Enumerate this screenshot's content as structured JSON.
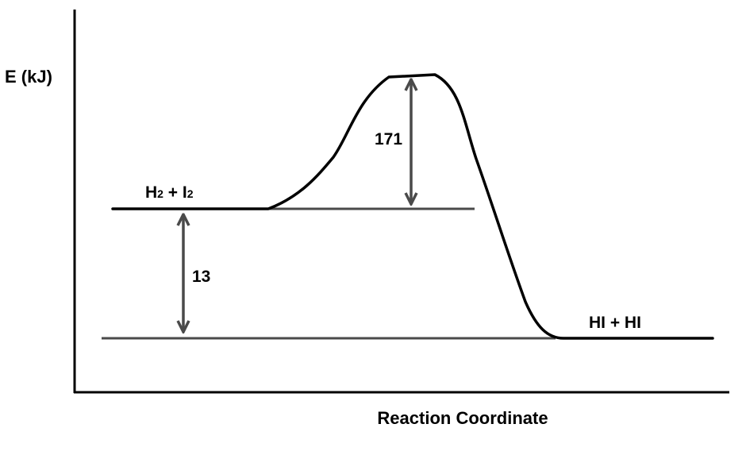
{
  "diagram": {
    "y_axis_label": "E (kJ)",
    "x_axis_label": "Reaction Coordinate",
    "reactants": {
      "base": "H",
      "sub1": "2",
      "mid": " + I",
      "sub2": "2"
    },
    "products_label": "HI + HI",
    "activation_energy_label": "171",
    "enthalpy_change_label": "13",
    "colors": {
      "curve": "#000000",
      "axes": "#000000",
      "reference_lines": "#4a4a4a",
      "arrows": "#4a4a4a"
    }
  }
}
